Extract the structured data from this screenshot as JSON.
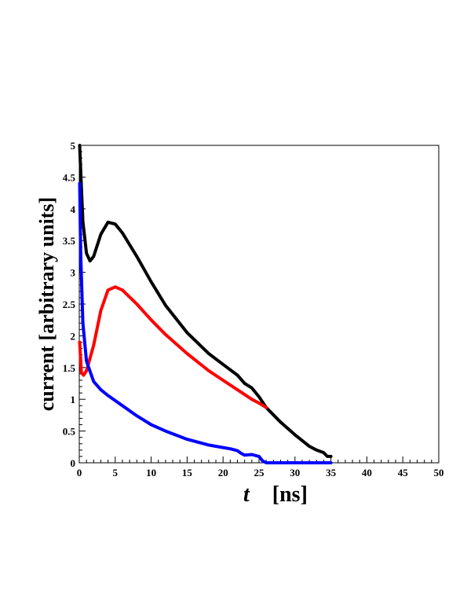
{
  "chart_data": {
    "type": "line",
    "title": "",
    "xlabel_italic": "t",
    "xlabel_unit": "[ns]",
    "ylabel": "current [arbitrary units]",
    "xlim": [
      0,
      50
    ],
    "ylim": [
      0,
      5
    ],
    "x_ticks": [
      0,
      5,
      10,
      15,
      20,
      25,
      30,
      35,
      40,
      45,
      50
    ],
    "y_ticks": [
      0,
      0.5,
      1,
      1.5,
      2,
      2.5,
      3,
      3.5,
      4,
      4.5,
      5
    ],
    "x_tick_labels": [
      "0",
      "5",
      "10",
      "15",
      "20",
      "25",
      "30",
      "35",
      "40",
      "45",
      "50"
    ],
    "y_tick_labels": [
      "0",
      "0.5",
      "1",
      "1.5",
      "2",
      "2.5",
      "3",
      "3.5",
      "4",
      "4.5",
      "5"
    ],
    "grid": false,
    "legend": "none",
    "series": [
      {
        "color": "#000000",
        "points": [
          [
            0.05,
            5.0
          ],
          [
            0.2,
            4.6
          ],
          [
            0.5,
            3.8
          ],
          [
            1.0,
            3.3
          ],
          [
            1.5,
            3.18
          ],
          [
            2.0,
            3.25
          ],
          [
            3.0,
            3.6
          ],
          [
            4.0,
            3.79
          ],
          [
            5.0,
            3.76
          ],
          [
            6.0,
            3.62
          ],
          [
            8.0,
            3.25
          ],
          [
            10.0,
            2.85
          ],
          [
            12.0,
            2.48
          ],
          [
            15.0,
            2.05
          ],
          [
            18.0,
            1.72
          ],
          [
            20.0,
            1.55
          ],
          [
            22.0,
            1.38
          ],
          [
            23.0,
            1.25
          ],
          [
            24.0,
            1.18
          ],
          [
            25.0,
            1.04
          ],
          [
            26.0,
            0.87
          ],
          [
            28.0,
            0.64
          ],
          [
            30.0,
            0.44
          ],
          [
            32.0,
            0.26
          ],
          [
            33.0,
            0.2
          ],
          [
            34.0,
            0.16
          ],
          [
            34.5,
            0.1
          ],
          [
            35.0,
            0.1
          ]
        ]
      },
      {
        "color": "#ff0000",
        "points": [
          [
            0.05,
            1.9
          ],
          [
            0.3,
            1.42
          ],
          [
            0.6,
            1.38
          ],
          [
            1.0,
            1.45
          ],
          [
            2.0,
            1.85
          ],
          [
            3.0,
            2.4
          ],
          [
            4.0,
            2.72
          ],
          [
            5.0,
            2.77
          ],
          [
            6.0,
            2.72
          ],
          [
            8.0,
            2.5
          ],
          [
            10.0,
            2.25
          ],
          [
            12.0,
            2.02
          ],
          [
            15.0,
            1.72
          ],
          [
            18.0,
            1.45
          ],
          [
            20.0,
            1.3
          ],
          [
            22.0,
            1.15
          ],
          [
            24.0,
            1.0
          ],
          [
            25.0,
            0.94
          ],
          [
            26.0,
            0.87
          ]
        ]
      },
      {
        "color": "#0000ff",
        "points": [
          [
            0.05,
            4.4
          ],
          [
            0.2,
            3.3
          ],
          [
            0.5,
            2.2
          ],
          [
            1.0,
            1.6
          ],
          [
            2.0,
            1.28
          ],
          [
            3.0,
            1.15
          ],
          [
            4.0,
            1.06
          ],
          [
            6.0,
            0.9
          ],
          [
            8.0,
            0.74
          ],
          [
            10.0,
            0.6
          ],
          [
            12.0,
            0.5
          ],
          [
            15.0,
            0.37
          ],
          [
            18.0,
            0.28
          ],
          [
            20.0,
            0.24
          ],
          [
            21.0,
            0.22
          ],
          [
            22.0,
            0.19
          ],
          [
            22.5,
            0.15
          ],
          [
            23.0,
            0.12
          ],
          [
            24.0,
            0.13
          ],
          [
            25.0,
            0.1
          ],
          [
            25.5,
            0.03
          ],
          [
            26.0,
            0.0
          ],
          [
            35.0,
            0.0
          ]
        ]
      }
    ]
  }
}
